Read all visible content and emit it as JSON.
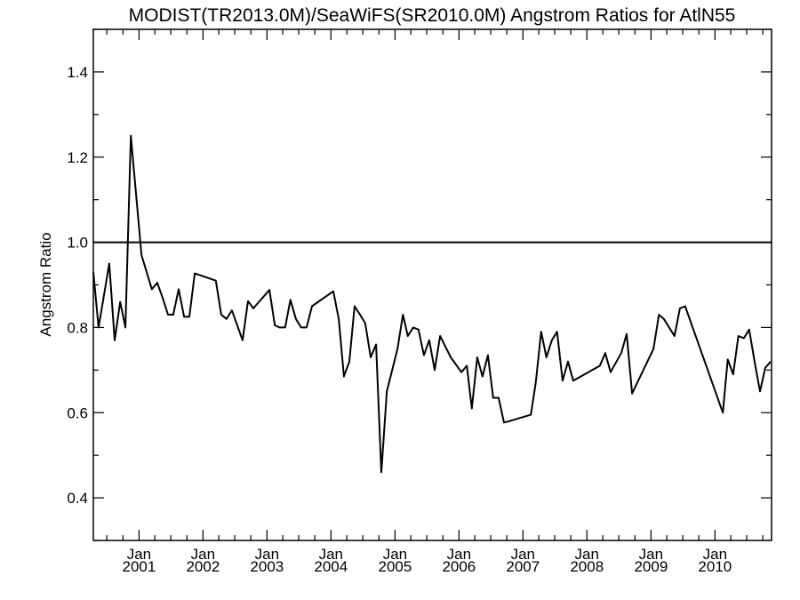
{
  "chart_data": {
    "type": "line",
    "title": "MODIST(TR2013.0M)/SeaWiFS(SR2010.0M)  Angstrom Ratios for AtlN55",
    "xlabel": "",
    "ylabel": "Angstrom Ratio",
    "ylim": [
      0.3,
      1.5
    ],
    "xlim": [
      "2000-04-15",
      "2010-11-20"
    ],
    "y_ticks": [
      "0.4",
      "0.6",
      "0.8",
      "1.0",
      "1.2",
      "1.4"
    ],
    "x_ticks": [
      {
        "month": "Jan",
        "year": "2001",
        "date": "2001-01-01"
      },
      {
        "month": "Jan",
        "year": "2002",
        "date": "2002-01-01"
      },
      {
        "month": "Jan",
        "year": "2003",
        "date": "2003-01-01"
      },
      {
        "month": "Jan",
        "year": "2004",
        "date": "2004-01-01"
      },
      {
        "month": "Jan",
        "year": "2005",
        "date": "2005-01-01"
      },
      {
        "month": "Jan",
        "year": "2006",
        "date": "2006-01-01"
      },
      {
        "month": "Jan",
        "year": "2007",
        "date": "2007-01-01"
      },
      {
        "month": "Jan",
        "year": "2008",
        "date": "2008-01-01"
      },
      {
        "month": "Jan",
        "year": "2009",
        "date": "2009-01-01"
      },
      {
        "month": "Jan",
        "year": "2010",
        "date": "2010-01-01"
      }
    ],
    "reference_line": 1.0,
    "grid": false,
    "series": [
      {
        "x": [
          "2000-04-15",
          "2000-05-15",
          "2000-07-15",
          "2000-08-15",
          "2000-09-15",
          "2000-10-15",
          "2000-11-15",
          "2001-01-15",
          "2001-03-15",
          "2001-04-15",
          "2001-05-15",
          "2001-06-15",
          "2001-07-15",
          "2001-08-15",
          "2001-09-15",
          "2001-10-15",
          "2001-11-15",
          "2002-03-15",
          "2002-04-15",
          "2002-05-15",
          "2002-06-15",
          "2002-08-15",
          "2002-09-15",
          "2002-10-15",
          "2003-01-15",
          "2003-02-15",
          "2003-03-15",
          "2003-04-15",
          "2003-05-15",
          "2003-06-15",
          "2003-07-15",
          "2003-08-15",
          "2003-09-15",
          "2004-01-15",
          "2004-02-15",
          "2004-03-15",
          "2004-04-15",
          "2004-05-15",
          "2004-06-15",
          "2004-07-15",
          "2004-08-15",
          "2004-09-15",
          "2004-10-15",
          "2004-11-15",
          "2005-01-15",
          "2005-02-15",
          "2005-03-15",
          "2005-04-15",
          "2005-05-15",
          "2005-06-15",
          "2005-07-15",
          "2005-08-15",
          "2005-09-15",
          "2005-11-15",
          "2006-01-15",
          "2006-02-15",
          "2006-03-15",
          "2006-04-15",
          "2006-05-15",
          "2006-06-15",
          "2006-07-15",
          "2006-08-15",
          "2006-09-15",
          "2006-10-15",
          "2007-02-15",
          "2007-03-15",
          "2007-04-15",
          "2007-05-15",
          "2007-06-15",
          "2007-07-15",
          "2007-08-15",
          "2007-09-15",
          "2007-10-15",
          "2008-03-15",
          "2008-04-15",
          "2008-05-15",
          "2008-07-15",
          "2008-08-15",
          "2008-09-15",
          "2009-01-15",
          "2009-02-15",
          "2009-03-15",
          "2009-05-15",
          "2009-06-15",
          "2009-07-15",
          "2010-02-15",
          "2010-03-15",
          "2010-04-15",
          "2010-05-15",
          "2010-06-15",
          "2010-07-15",
          "2010-08-15",
          "2010-09-15",
          "2010-10-15",
          "2010-11-15"
        ],
        "values": [
          0.93,
          0.8,
          0.95,
          0.77,
          0.86,
          0.8,
          1.25,
          0.97,
          0.89,
          0.905,
          0.87,
          0.83,
          0.83,
          0.89,
          0.825,
          0.825,
          0.927,
          0.91,
          0.83,
          0.82,
          0.84,
          0.77,
          0.862,
          0.845,
          0.888,
          0.805,
          0.8,
          0.8,
          0.865,
          0.82,
          0.8,
          0.8,
          0.85,
          0.885,
          0.82,
          0.685,
          0.72,
          0.85,
          0.83,
          0.81,
          0.73,
          0.76,
          0.46,
          0.65,
          0.75,
          0.83,
          0.78,
          0.8,
          0.795,
          0.735,
          0.77,
          0.7,
          0.78,
          0.73,
          0.695,
          0.71,
          0.61,
          0.73,
          0.685,
          0.735,
          0.635,
          0.635,
          0.577,
          0.58,
          0.595,
          0.67,
          0.79,
          0.73,
          0.77,
          0.79,
          0.675,
          0.72,
          0.675,
          0.71,
          0.74,
          0.695,
          0.74,
          0.785,
          0.645,
          0.75,
          0.83,
          0.82,
          0.78,
          0.845,
          0.85,
          0.6,
          0.725,
          0.69,
          0.78,
          0.775,
          0.795,
          0.72,
          0.65,
          0.705,
          0.72
        ]
      }
    ]
  }
}
